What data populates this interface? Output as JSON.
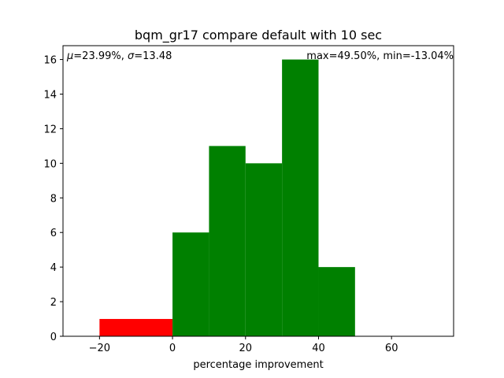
{
  "chart_data": {
    "type": "bar",
    "title": "bqm_gr17 compare default with 10 sec",
    "xlabel": "percentage improvement",
    "ylabel": "",
    "xlim": [
      -30,
      77
    ],
    "ylim": [
      0,
      16.8
    ],
    "grid": false,
    "x_ticks": [
      -20,
      0,
      20,
      40,
      60
    ],
    "y_ticks": [
      0,
      2,
      4,
      6,
      8,
      10,
      12,
      14,
      16
    ],
    "bins": [
      {
        "x0": -20,
        "x1": 0,
        "value": 1,
        "color": "#ff0000"
      },
      {
        "x0": 0,
        "x1": 10,
        "value": 6,
        "color": "#008000"
      },
      {
        "x0": 10,
        "x1": 20,
        "value": 11,
        "color": "#008000"
      },
      {
        "x0": 20,
        "x1": 30,
        "value": 10,
        "color": "#008000"
      },
      {
        "x0": 30,
        "x1": 40,
        "value": 16,
        "color": "#008000"
      },
      {
        "x0": 40,
        "x1": 50,
        "value": 4,
        "color": "#008000"
      }
    ],
    "stats_left": {
      "mu_value": "=23.99%, ",
      "sigma_value": "=13.48"
    },
    "stats_right": "max=49.50%, min=-13.04%"
  }
}
